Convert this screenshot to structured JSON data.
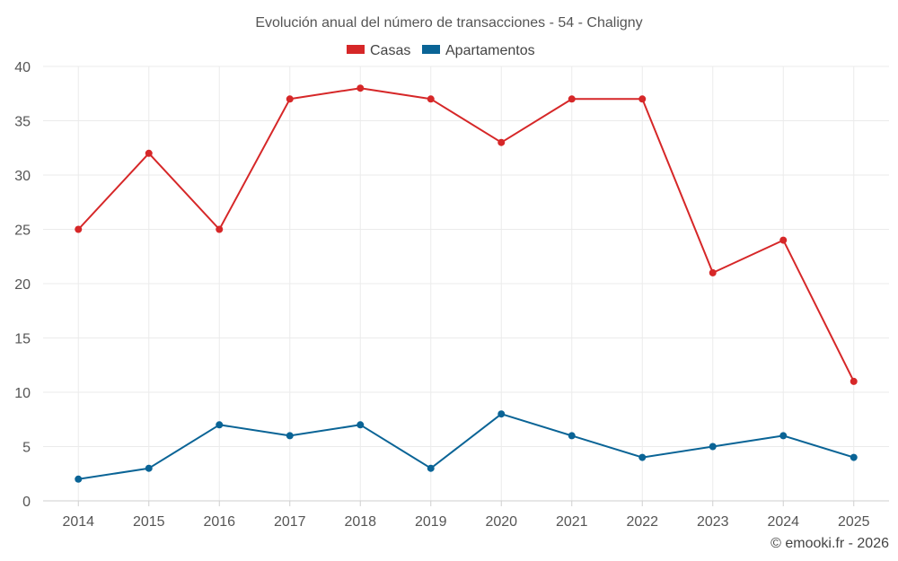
{
  "chart_data": {
    "type": "line",
    "title": "Evolución anual del número de transacciones - 54 - Chaligny",
    "xlabel": "",
    "ylabel": "",
    "categories": [
      "2014",
      "2015",
      "2016",
      "2017",
      "2018",
      "2019",
      "2020",
      "2021",
      "2022",
      "2023",
      "2024",
      "2025"
    ],
    "ylim": [
      0,
      40
    ],
    "yticks": [
      0,
      5,
      10,
      15,
      20,
      25,
      30,
      35,
      40
    ],
    "grid": true,
    "legend_position": "top-center",
    "series": [
      {
        "name": "Casas",
        "color": "#d62728",
        "values": [
          25,
          32,
          25,
          37,
          38,
          37,
          33,
          37,
          37,
          21,
          24,
          11
        ]
      },
      {
        "name": "Apartamentos",
        "color": "#0a6496",
        "values": [
          2,
          3,
          7,
          6,
          7,
          3,
          8,
          6,
          4,
          5,
          6,
          4
        ]
      }
    ]
  },
  "credit": "© emooki.fr - 2026"
}
